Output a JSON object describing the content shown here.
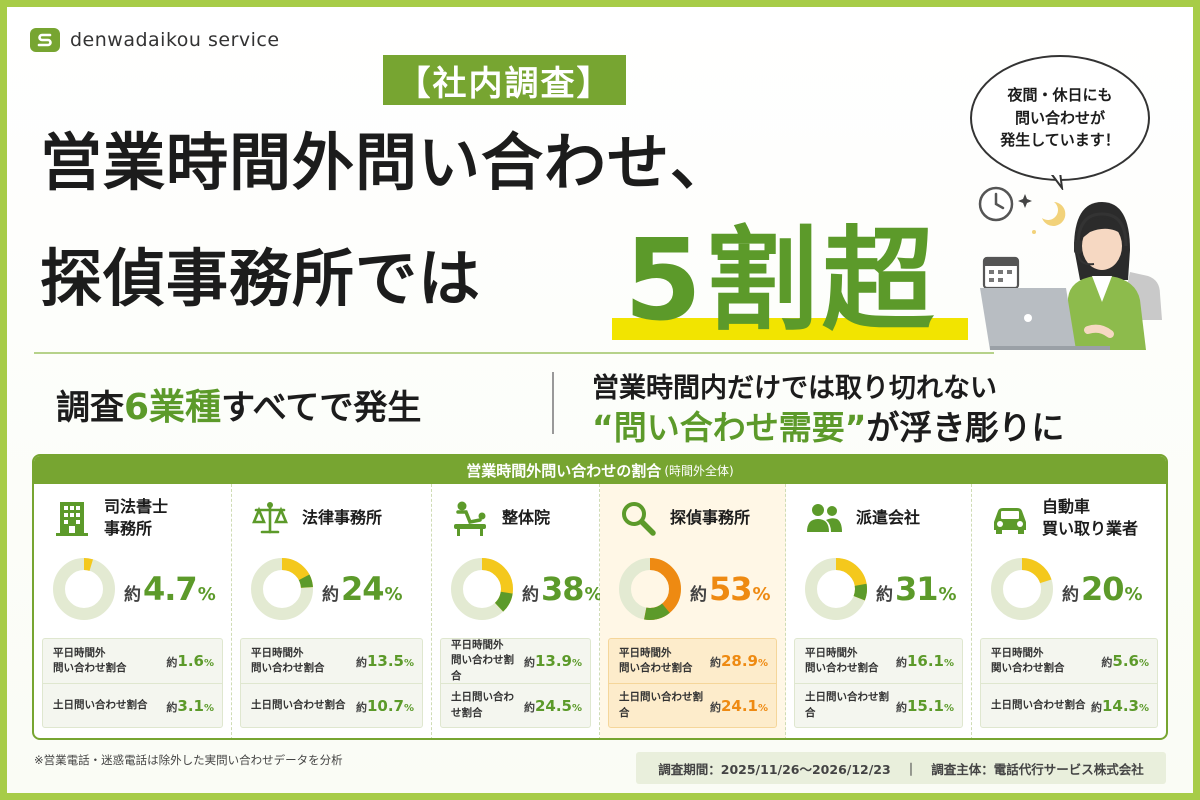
{
  "brand": {
    "name": "denwadaikou service"
  },
  "header": {
    "badge": "【社内調査】",
    "line1": "営業時間外問い合わせ、",
    "line2": "探偵事務所では",
    "highlight": "5割超"
  },
  "bubble": {
    "text": "夜間・休日にも\n問い合わせが\n発生しています！"
  },
  "subheads": {
    "left_pre": "調査",
    "left_accent": "6業種",
    "left_post": "すべてで発生",
    "right_line1": "営業時間内だけでは取り切れない",
    "right_accent": "“問い合わせ需要”",
    "right_post": "が浮き彫りに"
  },
  "panel": {
    "title": "営業時間外問い合わせの割合",
    "title_note": "(時間外全体)"
  },
  "colors": {
    "accent": "#77a531",
    "highlight": "#ee8a12",
    "donut_bg": "#e3ead2",
    "donut_fill": "#f4c81c"
  },
  "chart_data": {
    "type": "pie",
    "title": "営業時間外問い合わせの割合",
    "categories": [
      "司法書士事務所",
      "法律事務所",
      "整体院",
      "探偵事務所",
      "派遣会社",
      "自動車買い取り業者"
    ],
    "series": [
      {
        "name": "時間外全体",
        "values": [
          4.7,
          24,
          38,
          53,
          31,
          20
        ]
      },
      {
        "name": "平日時間外問い合わせ割合",
        "values": [
          1.6,
          13.5,
          13.9,
          28.9,
          16.1,
          5.6
        ]
      },
      {
        "name": "土日問い合わせ割合",
        "values": [
          3.1,
          10.7,
          24.5,
          24.1,
          15.1,
          14.3
        ]
      }
    ]
  },
  "cards": [
    {
      "name": "司法書士\n事務所",
      "icon": "building-icon",
      "prefix": "約",
      "value": "4.7",
      "unit": "%",
      "weekday_label": "平日時間外\n問い合わせ割合",
      "weekday_prefix": "約",
      "weekday_value": "1.6",
      "weekday_unit": "%",
      "weekend_label": "土日問い合わせ割合",
      "weekend_prefix": "約",
      "weekend_value": "3.1",
      "weekend_unit": "%"
    },
    {
      "name": "法律事務所",
      "icon": "scales-icon",
      "prefix": "約",
      "value": "24",
      "unit": "%",
      "weekday_label": "平日時間外\n問い合わせ割合",
      "weekday_prefix": "約",
      "weekday_value": "13.5",
      "weekday_unit": "%",
      "weekend_label": "土日問い合わせ割合",
      "weekend_prefix": "約",
      "weekend_value": "10.7",
      "weekend_unit": "%"
    },
    {
      "name": "整体院",
      "icon": "massage-icon",
      "prefix": "約",
      "value": "38",
      "unit": "%",
      "weekday_label": "平日時間外\n問い合わせ割合",
      "weekday_prefix": "約",
      "weekday_value": "13.9",
      "weekday_unit": "%",
      "weekend_label": "土日問い合わせ割合",
      "weekend_prefix": "約",
      "weekend_value": "24.5",
      "weekend_unit": "%"
    },
    {
      "name": "探偵事務所",
      "icon": "magnifier-icon",
      "prefix": "約",
      "value": "53",
      "unit": "%",
      "weekday_label": "平日時間外\n問い合わせ割合",
      "weekday_prefix": "約",
      "weekday_value": "28.9",
      "weekday_unit": "%",
      "weekend_label": "土日問い合わせ割合",
      "weekend_prefix": "約",
      "weekend_value": "24.1",
      "weekend_unit": "%"
    },
    {
      "name": "派遣会社",
      "icon": "people-icon",
      "prefix": "約",
      "value": "31",
      "unit": "%",
      "weekday_label": "平日時間外\n問い合わせ割合",
      "weekday_prefix": "約",
      "weekday_value": "16.1",
      "weekday_unit": "%",
      "weekend_label": "土日問い合わせ割合",
      "weekend_prefix": "約",
      "weekend_value": "15.1",
      "weekend_unit": "%"
    },
    {
      "name": "自動車\n買い取り業者",
      "icon": "car-icon",
      "prefix": "約",
      "value": "20",
      "unit": "%",
      "weekday_label": "平日時間外\n関い合わせ割合",
      "weekday_prefix": "約",
      "weekday_value": "5.6",
      "weekday_unit": "%",
      "weekend_label": "土日問い合わせ割合",
      "weekend_prefix": "約",
      "weekend_value": "14.3",
      "weekend_unit": "%"
    }
  ],
  "footer": {
    "note": "※営業電話・迷惑電話は除外した実問い合わせデータを分析",
    "period": "調査期間：2025/11/26～2026/12/23",
    "separator": "｜",
    "organizer": "調査主体：電話代行サービス株式会社"
  }
}
